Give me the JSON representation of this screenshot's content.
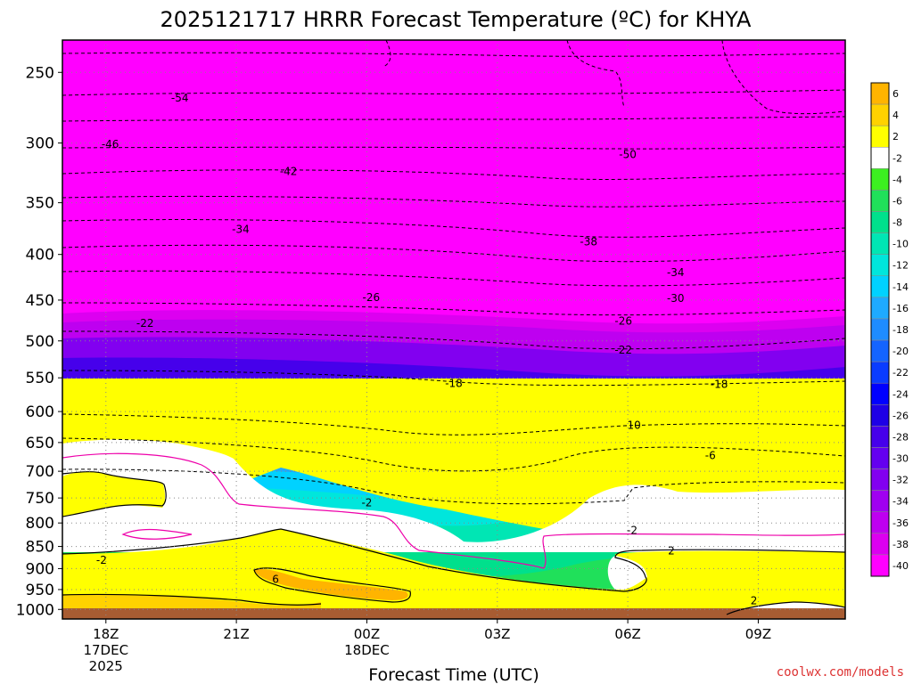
{
  "chart_data": {
    "type": "heatmap",
    "title": "2025121717 HRRR Forecast Temperature (ºC) for KHYA",
    "xlabel": "Forecast Time (UTC)",
    "ylabel": "",
    "x_range_hours_utc": [
      17,
      35
    ],
    "y_range_hpa": [
      230,
      1025
    ],
    "y_scale": "log",
    "grid": true,
    "pressure_ticks": [
      {
        "value": 250,
        "label": "250"
      },
      {
        "value": 300,
        "label": "300"
      },
      {
        "value": 350,
        "label": "350"
      },
      {
        "value": 400,
        "label": "400"
      },
      {
        "value": 450,
        "label": "450"
      },
      {
        "value": 500,
        "label": "500"
      },
      {
        "value": 550,
        "label": "550"
      },
      {
        "value": 600,
        "label": "600"
      },
      {
        "value": 650,
        "label": "650"
      },
      {
        "value": 700,
        "label": "700"
      },
      {
        "value": 750,
        "label": "750"
      },
      {
        "value": 800,
        "label": "800"
      },
      {
        "value": 850,
        "label": "850"
      },
      {
        "value": 900,
        "label": "900"
      },
      {
        "value": 950,
        "label": "950"
      },
      {
        "value": 1000,
        "label": "1000"
      }
    ],
    "time_ticks": [
      {
        "hour": 18,
        "label": "18Z",
        "date1": "17DEC",
        "date2": "2025"
      },
      {
        "hour": 21,
        "label": "21Z",
        "date1": "",
        "date2": ""
      },
      {
        "hour": 24,
        "label": "00Z",
        "date1": "18DEC",
        "date2": ""
      },
      {
        "hour": 27,
        "label": "03Z",
        "date1": "",
        "date2": ""
      },
      {
        "hour": 30,
        "label": "06Z",
        "date1": "",
        "date2": ""
      },
      {
        "hour": 33,
        "label": "09Z",
        "date1": "",
        "date2": ""
      }
    ],
    "colorbar": {
      "labels": [
        "6",
        "4",
        "2",
        "-2",
        "-4",
        "-6",
        "-8",
        "-10",
        "-12",
        "-14",
        "-16",
        "-18",
        "-20",
        "-22",
        "-24",
        "-26",
        "-28",
        "-30",
        "-32",
        "-34",
        "-36",
        "-38",
        "-40"
      ],
      "colors": [
        "#ffb400",
        "#ffd200",
        "#ffff00",
        "#ffffff",
        "#3cf020",
        "#20e05a",
        "#00e08c",
        "#00e6b4",
        "#00e6dc",
        "#00d2ff",
        "#1eaaff",
        "#1e8cff",
        "#1464ff",
        "#0a3cff",
        "#0000ff",
        "#1e00e6",
        "#4600eb",
        "#6400f0",
        "#8200f0",
        "#a000f0",
        "#be00f0",
        "#dc00f0",
        "#ff00ff"
      ]
    },
    "contour_labels": [
      {
        "text": "-54",
        "hour": 19.7,
        "p": 267
      },
      {
        "text": "-46",
        "hour": 18.1,
        "p": 301
      },
      {
        "text": "-42",
        "hour": 22.2,
        "p": 323
      },
      {
        "text": "-34",
        "hour": 21.1,
        "p": 375
      },
      {
        "text": "-50",
        "hour": 30.0,
        "p": 309
      },
      {
        "text": "-38",
        "hour": 29.1,
        "p": 387
      },
      {
        "text": "-34",
        "hour": 31.1,
        "p": 419
      },
      {
        "text": "-30",
        "hour": 31.1,
        "p": 448
      },
      {
        "text": "-26",
        "hour": 24.1,
        "p": 447
      },
      {
        "text": "-26",
        "hour": 29.9,
        "p": 475
      },
      {
        "text": "-22",
        "hour": 18.9,
        "p": 478
      },
      {
        "text": "-22",
        "hour": 29.9,
        "p": 512
      },
      {
        "text": "-18",
        "hour": 26.0,
        "p": 558
      },
      {
        "text": "-18",
        "hour": 32.1,
        "p": 559
      },
      {
        "text": "-10",
        "hour": 30.1,
        "p": 622
      },
      {
        "text": "-6",
        "hour": 31.9,
        "p": 672
      },
      {
        "text": "-2",
        "hour": 24.0,
        "p": 759
      },
      {
        "text": "-2",
        "hour": 30.1,
        "p": 815
      },
      {
        "text": "-2",
        "hour": 17.9,
        "p": 881
      },
      {
        "text": "6",
        "hour": 21.9,
        "p": 925
      },
      {
        "text": "2",
        "hour": 31.0,
        "p": 860
      },
      {
        "text": "2",
        "hour": 32.9,
        "p": 978
      }
    ]
  },
  "credit": "coolwx.com/models",
  "colors": {
    "ground": "#a85c32",
    "frame": "#000000",
    "contour_dashed": "#000000",
    "contour_zero": "#ee00aa"
  }
}
